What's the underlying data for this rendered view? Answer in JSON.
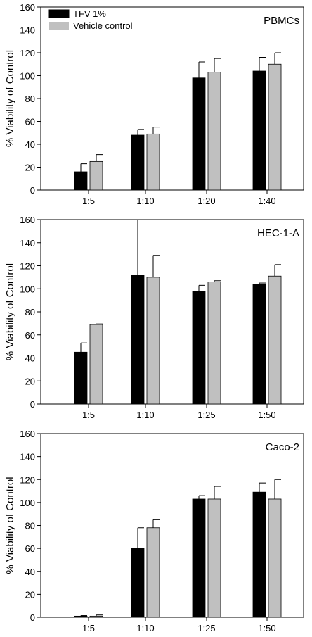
{
  "chart_data": [
    {
      "type": "bar",
      "title": "PBMCs",
      "ylabel": "% Viability of Control",
      "xlabel": "",
      "ylim": [
        0,
        160
      ],
      "yticks": [
        0,
        20,
        40,
        60,
        80,
        100,
        120,
        140,
        160
      ],
      "categories": [
        "1:5",
        "1:10",
        "1:20",
        "1:40"
      ],
      "legend": "top-left",
      "series": [
        {
          "name": "TFV 1%",
          "color": "#000000",
          "values": [
            16,
            48,
            98,
            104
          ],
          "errors": [
            7,
            5,
            14,
            12
          ]
        },
        {
          "name": "Vehicle control",
          "color": "#c0c0c0",
          "values": [
            25,
            49,
            103,
            110
          ],
          "errors": [
            6,
            6,
            12,
            10
          ]
        }
      ]
    },
    {
      "type": "bar",
      "title": "HEC-1-A",
      "ylabel": "% Viability of Control",
      "xlabel": "",
      "ylim": [
        0,
        160
      ],
      "yticks": [
        0,
        20,
        40,
        60,
        80,
        100,
        120,
        140,
        160
      ],
      "categories": [
        "1:5",
        "1:10",
        "1:25",
        "1:50"
      ],
      "series": [
        {
          "name": "TFV 1%",
          "color": "#000000",
          "values": [
            45,
            112,
            98,
            104
          ],
          "errors": [
            8,
            48,
            5,
            1
          ]
        },
        {
          "name": "Vehicle control",
          "color": "#c0c0c0",
          "values": [
            69,
            110,
            106,
            111
          ],
          "errors": [
            0.5,
            19,
            1,
            10
          ]
        }
      ]
    },
    {
      "type": "bar",
      "title": "Caco-2",
      "ylabel": "% Viability of Control",
      "xlabel": "",
      "ylim": [
        0,
        160
      ],
      "yticks": [
        0,
        20,
        40,
        60,
        80,
        100,
        120,
        140,
        160
      ],
      "categories": [
        "1:5",
        "1:10",
        "1:25",
        "1:50"
      ],
      "series": [
        {
          "name": "TFV 1%",
          "color": "#000000",
          "values": [
            1,
            60,
            103,
            109
          ],
          "errors": [
            0.5,
            18,
            3,
            8
          ]
        },
        {
          "name": "Vehicle control",
          "color": "#c0c0c0",
          "values": [
            1,
            78,
            103,
            103
          ],
          "errors": [
            1,
            7,
            11,
            17
          ]
        }
      ]
    }
  ]
}
